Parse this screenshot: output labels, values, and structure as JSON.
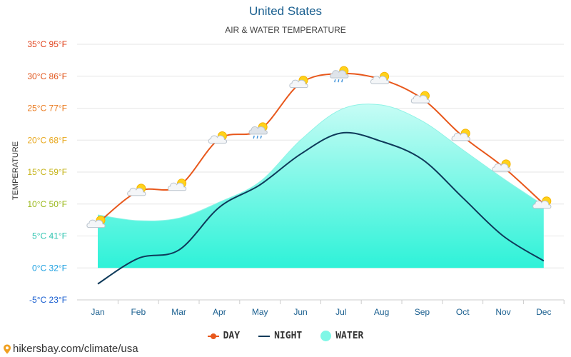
{
  "title": "United States",
  "subtitle": "AIR & WATER TEMPERATURE",
  "source": "hikersbay.com/climate/usa",
  "colors": {
    "day": "#e8581c",
    "night": "#0e3a5a",
    "water_top": "#b8fbf3",
    "water_bottom": "#2ef2d8",
    "title": "#1a5f8f"
  },
  "chart_data": {
    "type": "line",
    "ylabel": "TEMPERATURE",
    "ylim": [
      -5,
      35
    ],
    "y_ticks": [
      {
        "value": 35,
        "label": "35°C 95°F",
        "color": "#e0401a"
      },
      {
        "value": 30,
        "label": "30°C 86°F",
        "color": "#e0541a"
      },
      {
        "value": 25,
        "label": "25°C 77°F",
        "color": "#ea7a1e"
      },
      {
        "value": 20,
        "label": "20°C 68°F",
        "color": "#e8a81e"
      },
      {
        "value": 15,
        "label": "15°C 59°F",
        "color": "#c6b41a"
      },
      {
        "value": 10,
        "label": "10°C 50°F",
        "color": "#9ab81a"
      },
      {
        "value": 5,
        "label": "5°C 41°F",
        "color": "#2ec4b0"
      },
      {
        "value": 0,
        "label": "0°C 32°F",
        "color": "#1a9fe0"
      },
      {
        "value": -5,
        "label": "-5°C 23°F",
        "color": "#1a5fd0"
      }
    ],
    "categories": [
      "Jan",
      "Feb",
      "Mar",
      "Apr",
      "May",
      "Jun",
      "Jul",
      "Aug",
      "Sep",
      "Oct",
      "Nov",
      "Dec"
    ],
    "series": [
      {
        "name": "DAY",
        "type": "line",
        "color": "#e8581c",
        "values": [
          7,
          12,
          12.8,
          20.2,
          21.6,
          28.9,
          30.4,
          29.5,
          26.5,
          20.6,
          15.8,
          10
        ]
      },
      {
        "name": "NIGHT",
        "type": "line",
        "color": "#0e3a5a",
        "values": [
          -2.5,
          1.5,
          2.8,
          9.5,
          13,
          17.8,
          21.1,
          19.8,
          17,
          11,
          5,
          1.1
        ]
      },
      {
        "name": "WATER",
        "type": "area",
        "color": "#7ff7e6",
        "values": [
          8.3,
          7.4,
          7.8,
          10.3,
          13.5,
          20,
          24.8,
          25.5,
          23,
          18.5,
          14,
          9.8
        ]
      }
    ],
    "weather_icons": [
      "partly-cloudy-icon",
      "partly-cloudy-icon",
      "partly-cloudy-icon",
      "partly-cloudy-icon",
      "rain-cloud-icon",
      "partly-cloudy-icon",
      "rain-cloud-icon",
      "partly-cloudy-icon",
      "partly-cloudy-icon",
      "partly-cloudy-icon",
      "partly-cloudy-icon",
      "partly-cloudy-icon"
    ],
    "legend_position": "bottom-center",
    "grid": true
  }
}
